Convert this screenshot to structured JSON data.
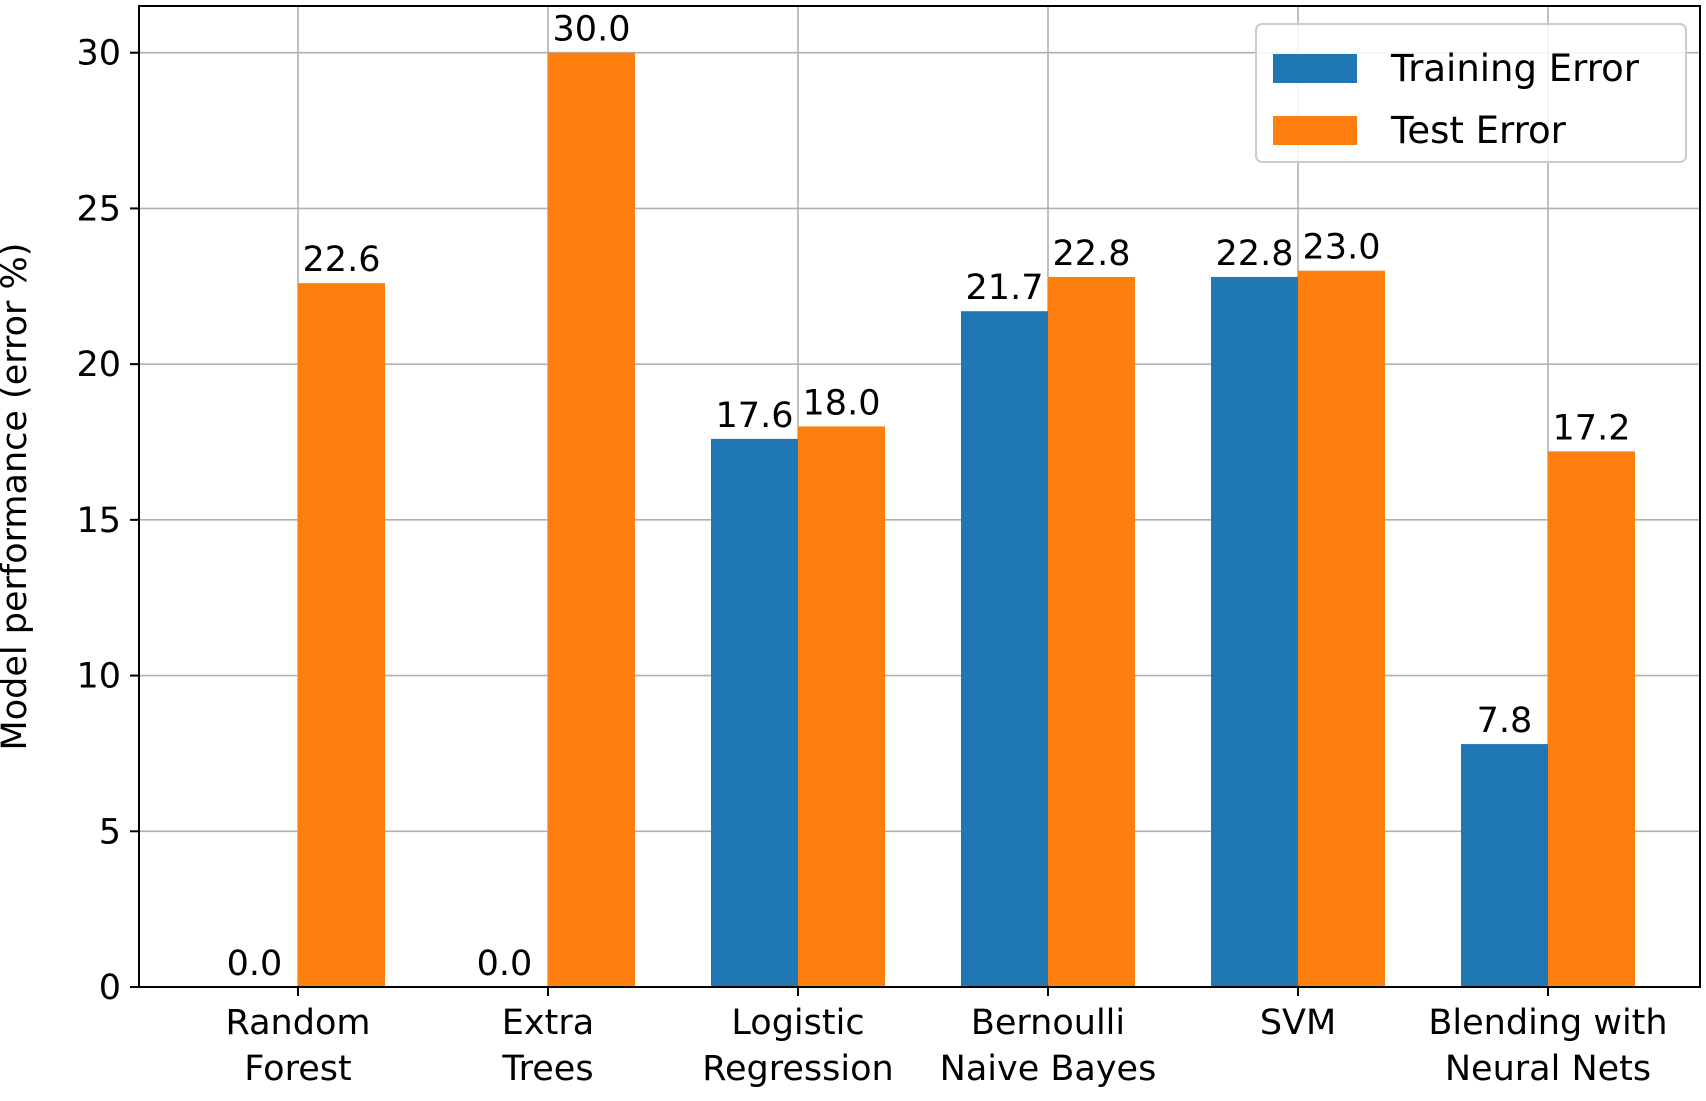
{
  "chart_data": {
    "type": "bar",
    "title": "",
    "xlabel": "",
    "ylabel": "Model performance (error %)",
    "ylim": [
      0,
      31.5
    ],
    "yticks": [
      0,
      5,
      10,
      15,
      20,
      25,
      30
    ],
    "grid": true,
    "legend_position": "top-right",
    "categories": [
      [
        "Random",
        "Forest"
      ],
      [
        "Extra",
        "Trees"
      ],
      [
        "Logistic",
        "Regression"
      ],
      [
        "Bernoulli",
        "Naive Bayes"
      ],
      [
        "SVM"
      ],
      [
        "Blending with",
        "Neural Nets"
      ]
    ],
    "series": [
      {
        "name": "Training Error",
        "color": "#1f77b4",
        "values": [
          0.0,
          0.0,
          17.6,
          21.7,
          22.8,
          7.8
        ],
        "labels": [
          "0.0",
          "0.0",
          "17.6",
          "21.7",
          "22.8",
          "7.8"
        ]
      },
      {
        "name": "Test Error",
        "color": "#ff7f0e",
        "values": [
          22.6,
          30.0,
          18.0,
          22.8,
          23.0,
          17.2
        ],
        "labels": [
          "22.6",
          "30.0",
          "18.0",
          "22.8",
          "23.0",
          "17.2"
        ]
      }
    ]
  }
}
